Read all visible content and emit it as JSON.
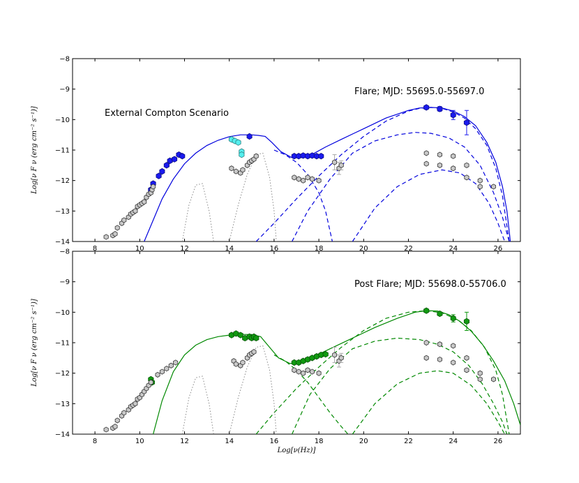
{
  "chart_data": [
    {
      "type": "scatter",
      "title": "Flare; MJD: 55695.0-55697.0",
      "annotation": "External Compton Scenario",
      "xlabel": "",
      "ylabel": "Log[ν F ν (erg cm⁻² s⁻¹)]",
      "xlim": [
        7,
        27
      ],
      "ylim": [
        -14,
        -8
      ],
      "xticks": [
        8,
        10,
        12,
        14,
        16,
        18,
        20,
        22,
        24,
        26
      ],
      "yticks": [
        -14,
        -13,
        -12,
        -11,
        -10,
        -9,
        -8
      ],
      "xtick_labels": [
        "8",
        "10",
        "12",
        "14",
        "16",
        "18",
        "20",
        "22",
        "24",
        "26"
      ],
      "ytick_labels": [
        "−14",
        "−13",
        "−12",
        "−11",
        "−10",
        "−9",
        "−8"
      ],
      "color": "#0000dd",
      "grid": false,
      "series": [
        {
          "style": "points-filled",
          "color": "#1a1aee",
          "x": [
            10.5,
            10.6,
            10.85,
            11.0,
            11.2,
            11.35,
            11.55,
            11.75,
            11.9
          ],
          "y": [
            -12.3,
            -12.1,
            -11.85,
            -11.7,
            -11.5,
            -11.35,
            -11.3,
            -11.15,
            -11.2
          ]
        },
        {
          "style": "points-filled",
          "color": "#1a1aee",
          "x": [
            14.9,
            16.9,
            17.1,
            17.3,
            17.5,
            17.7,
            17.9,
            18.1,
            22.8,
            23.4,
            24.0,
            24.6
          ],
          "y": [
            -10.55,
            -11.2,
            -11.2,
            -11.18,
            -11.2,
            -11.18,
            -11.2,
            -11.2,
            -9.6,
            -9.65,
            -9.85,
            -10.1
          ],
          "yerr": [
            0,
            0,
            0,
            0,
            0,
            0,
            0,
            0,
            0,
            0.08,
            0.15,
            0.4
          ]
        },
        {
          "style": "points-cyan",
          "color": "#55eeee",
          "x": [
            14.1,
            14.25,
            14.4,
            14.55,
            14.55
          ],
          "y": [
            -10.65,
            -10.7,
            -10.75,
            -11.05,
            -11.15
          ]
        },
        {
          "style": "points-gray",
          "color": "#c8c8c8",
          "x": [
            8.5,
            8.8,
            8.9,
            9.0,
            9.2,
            9.3,
            9.5,
            9.6,
            9.7,
            9.8,
            9.9,
            10.0,
            10.1,
            10.2,
            10.3,
            10.4,
            10.5,
            10.55,
            10.6,
            14.1,
            14.3,
            14.5,
            14.6,
            14.8,
            14.9,
            15.0,
            15.1,
            15.2,
            16.9,
            17.1,
            17.3,
            17.5,
            17.7,
            18.0,
            18.7,
            18.9,
            19.0,
            22.8,
            22.8,
            23.4,
            23.4,
            24.0,
            24.0,
            24.6,
            24.6,
            25.2,
            25.2,
            25.8
          ],
          "y": [
            -13.85,
            -13.8,
            -13.75,
            -13.55,
            -13.4,
            -13.3,
            -13.2,
            -13.1,
            -13.05,
            -13.0,
            -12.85,
            -12.8,
            -12.75,
            -12.7,
            -12.55,
            -12.45,
            -12.4,
            -12.3,
            -12.2,
            -11.6,
            -11.7,
            -11.75,
            -11.65,
            -11.5,
            -11.4,
            -11.35,
            -11.3,
            -11.2,
            -11.9,
            -11.95,
            -12.0,
            -11.9,
            -11.95,
            -12.0,
            -11.4,
            -11.6,
            -11.5,
            -11.1,
            -11.45,
            -11.15,
            -11.5,
            -11.2,
            -11.6,
            -11.5,
            -11.9,
            -12.0,
            -12.2,
            -12.2
          ],
          "yerr": [
            0,
            0,
            0,
            0,
            0,
            0,
            0,
            0,
            0,
            0,
            0,
            0,
            0,
            0,
            0,
            0,
            0,
            0,
            0,
            0,
            0,
            0,
            0,
            0,
            0,
            0,
            0,
            0,
            0,
            0,
            0,
            0,
            0,
            0,
            0.25,
            0.2,
            0.15,
            0,
            0,
            0,
            0,
            0,
            0,
            0,
            0,
            0,
            0,
            0
          ]
        },
        {
          "style": "line-solid",
          "color": "#0000dd",
          "x": [
            10.2,
            10.6,
            11.0,
            11.5,
            12.0,
            12.5,
            13.0,
            13.5,
            14.0,
            14.5,
            15.0,
            15.3,
            15.6,
            15.9,
            16.3,
            16.8,
            17.3,
            17.8,
            18.3,
            19.0,
            20.0,
            21.0,
            22.0,
            22.5,
            23.0,
            23.5,
            24.0,
            24.5,
            25.0,
            25.5,
            25.9,
            26.2,
            26.4,
            26.55
          ],
          "y": [
            -14.0,
            -13.3,
            -12.6,
            -11.95,
            -11.45,
            -11.1,
            -10.85,
            -10.68,
            -10.56,
            -10.5,
            -10.5,
            -10.52,
            -10.55,
            -10.75,
            -11.05,
            -11.25,
            -11.25,
            -11.1,
            -10.9,
            -10.65,
            -10.3,
            -9.95,
            -9.7,
            -9.62,
            -9.6,
            -9.62,
            -9.72,
            -9.9,
            -10.2,
            -10.75,
            -11.4,
            -12.2,
            -13.0,
            -14.0
          ]
        },
        {
          "style": "line-dashed",
          "color": "#0000dd",
          "x": [
            15.2,
            16.0,
            17.0,
            18.0,
            19.0,
            20.0,
            21.0,
            22.0,
            22.5,
            23.0,
            23.5,
            24.0,
            24.5,
            25.0,
            25.5,
            25.9,
            26.2,
            26.5
          ],
          "y": [
            -14.0,
            -13.4,
            -12.6,
            -11.85,
            -11.15,
            -10.55,
            -10.05,
            -9.72,
            -9.63,
            -9.6,
            -9.63,
            -9.75,
            -9.95,
            -10.3,
            -10.85,
            -11.6,
            -12.5,
            -14.0
          ]
        },
        {
          "style": "line-dashed",
          "color": "#0000dd",
          "x": [
            16.8,
            17.5,
            18.5,
            19.5,
            20.5,
            21.5,
            22.3,
            23.0,
            23.8,
            24.5,
            25.2,
            25.8,
            26.2,
            26.5
          ],
          "y": [
            -14.0,
            -13.0,
            -11.95,
            -11.1,
            -10.7,
            -10.5,
            -10.42,
            -10.45,
            -10.6,
            -10.9,
            -11.5,
            -12.4,
            -13.2,
            -14.0
          ]
        },
        {
          "style": "line-dashed",
          "color": "#0000dd",
          "x": [
            19.5,
            20.5,
            21.5,
            22.5,
            23.5,
            24.3,
            25.0,
            25.6,
            26.0,
            26.3
          ],
          "y": [
            -14.0,
            -12.9,
            -12.2,
            -11.8,
            -11.65,
            -11.75,
            -12.1,
            -12.75,
            -13.4,
            -14.0
          ]
        },
        {
          "style": "line-dashed",
          "color": "#0000dd",
          "x": [
            16.0,
            16.5,
            17.0,
            17.5,
            18.0,
            18.3,
            18.6
          ],
          "y": [
            -11.0,
            -11.15,
            -11.4,
            -11.8,
            -12.4,
            -13.0,
            -14.0
          ]
        },
        {
          "style": "line-dotted",
          "color": "#888888",
          "x": [
            11.9,
            12.2,
            12.5,
            12.8,
            13.1,
            13.3
          ],
          "y": [
            -14.0,
            -12.8,
            -12.15,
            -12.1,
            -13.0,
            -14.0
          ]
        },
        {
          "style": "line-dotted",
          "color": "#888888",
          "x": [
            14.0,
            14.4,
            14.8,
            15.2,
            15.5,
            15.8,
            16.0,
            16.1
          ],
          "y": [
            -14.0,
            -12.8,
            -11.8,
            -11.15,
            -11.1,
            -11.9,
            -13.0,
            -14.0
          ]
        }
      ]
    },
    {
      "type": "scatter",
      "title": "Post Flare; MJD: 55698.0-55706.0",
      "xlabel": "Log[ν(Hz)]",
      "ylabel": "Log[ν F ν (erg cm⁻² s⁻¹)]",
      "xlim": [
        7,
        27
      ],
      "ylim": [
        -14,
        -8
      ],
      "xticks": [
        8,
        10,
        12,
        14,
        16,
        18,
        20,
        22,
        24,
        26
      ],
      "yticks": [
        -14,
        -13,
        -12,
        -11,
        -10,
        -9,
        -8
      ],
      "xtick_labels": [
        "8",
        "10",
        "12",
        "14",
        "16",
        "18",
        "20",
        "22",
        "24",
        "26"
      ],
      "ytick_labels": [
        "−14",
        "−13",
        "−12",
        "−11",
        "−10",
        "−9",
        "−8"
      ],
      "color": "#008800",
      "grid": false,
      "series": [
        {
          "style": "points-filled",
          "color": "#119911",
          "x": [
            10.5,
            10.55,
            14.1,
            14.3,
            14.5,
            14.7,
            14.9,
            15.0,
            15.1,
            15.2,
            16.9,
            17.1,
            17.3,
            17.5,
            17.7,
            17.9,
            18.1,
            18.3,
            22.8,
            23.4,
            24.0,
            24.6
          ],
          "y": [
            -12.2,
            -12.3,
            -10.75,
            -10.7,
            -10.75,
            -10.85,
            -10.8,
            -10.85,
            -10.8,
            -10.85,
            -11.65,
            -11.65,
            -11.6,
            -11.55,
            -11.5,
            -11.45,
            -11.4,
            -11.38,
            -9.95,
            -10.05,
            -10.2,
            -10.3
          ],
          "yerr": [
            0,
            0,
            0,
            0,
            0,
            0,
            0,
            0,
            0,
            0,
            0,
            0,
            0,
            0,
            0,
            0,
            0,
            0,
            0,
            0.06,
            0.12,
            0.3
          ]
        },
        {
          "style": "points-gray",
          "color": "#c8c8c8",
          "x": [
            8.5,
            8.8,
            8.9,
            9.0,
            9.2,
            9.3,
            9.5,
            9.6,
            9.7,
            9.8,
            9.9,
            10.0,
            10.1,
            10.2,
            10.3,
            10.4,
            10.5,
            10.8,
            11.0,
            11.2,
            11.4,
            11.6,
            14.2,
            14.3,
            14.5,
            14.6,
            14.8,
            14.9,
            15.0,
            15.1,
            16.9,
            17.1,
            17.3,
            17.5,
            17.7,
            18.0,
            18.7,
            18.9,
            19.0,
            22.8,
            22.8,
            23.4,
            23.4,
            24.0,
            24.0,
            24.6,
            24.6,
            25.2,
            25.2,
            25.8
          ],
          "y": [
            -13.85,
            -13.8,
            -13.75,
            -13.55,
            -13.4,
            -13.3,
            -13.2,
            -13.1,
            -13.05,
            -13.0,
            -12.85,
            -12.8,
            -12.7,
            -12.6,
            -12.5,
            -12.4,
            -12.3,
            -12.05,
            -11.95,
            -11.85,
            -11.75,
            -11.65,
            -11.6,
            -11.7,
            -11.75,
            -11.65,
            -11.5,
            -11.4,
            -11.35,
            -11.3,
            -11.9,
            -11.95,
            -12.0,
            -11.9,
            -11.95,
            -12.0,
            -11.4,
            -11.6,
            -11.5,
            -11.0,
            -11.5,
            -11.05,
            -11.55,
            -11.1,
            -11.65,
            -11.5,
            -11.9,
            -12.0,
            -12.2,
            -12.2
          ],
          "yerr": [
            0,
            0,
            0,
            0,
            0,
            0,
            0,
            0,
            0,
            0,
            0,
            0,
            0,
            0,
            0,
            0,
            0,
            0,
            0,
            0,
            0,
            0,
            0,
            0,
            0,
            0,
            0,
            0,
            0,
            0,
            0,
            0,
            0,
            0,
            0,
            0,
            0.25,
            0.2,
            0.15,
            0,
            0,
            0,
            0,
            0,
            0,
            0,
            0,
            0,
            0,
            0
          ]
        },
        {
          "style": "line-solid",
          "color": "#008800",
          "x": [
            10.6,
            11.0,
            11.5,
            12.0,
            12.5,
            13.0,
            13.5,
            14.0,
            14.5,
            15.0,
            15.4,
            15.8,
            16.2,
            16.7,
            17.2,
            17.8,
            18.5,
            19.5,
            20.5,
            21.5,
            22.3,
            22.8,
            23.3,
            23.8,
            24.3,
            24.8,
            25.3,
            25.8,
            26.3,
            26.7,
            27.0
          ],
          "y": [
            -14.0,
            -12.9,
            -11.95,
            -11.4,
            -11.08,
            -10.9,
            -10.8,
            -10.75,
            -10.73,
            -10.73,
            -10.8,
            -11.15,
            -11.5,
            -11.68,
            -11.65,
            -11.45,
            -11.2,
            -10.85,
            -10.5,
            -10.2,
            -10.0,
            -9.95,
            -9.96,
            -10.08,
            -10.3,
            -10.62,
            -11.05,
            -11.6,
            -12.25,
            -13.0,
            -13.7
          ]
        },
        {
          "style": "line-dashed",
          "color": "#008800",
          "x": [
            15.2,
            16.0,
            17.0,
            18.0,
            19.0,
            20.0,
            21.0,
            22.0,
            22.8,
            23.5,
            24.2,
            24.8,
            25.4,
            25.9,
            26.2,
            26.5
          ],
          "y": [
            -14.0,
            -13.3,
            -12.5,
            -11.8,
            -11.15,
            -10.6,
            -10.2,
            -10.0,
            -9.95,
            -10.02,
            -10.25,
            -10.6,
            -11.15,
            -11.9,
            -12.7,
            -14.0
          ]
        },
        {
          "style": "line-dashed",
          "color": "#008800",
          "x": [
            16.8,
            17.6,
            18.5,
            19.5,
            20.5,
            21.5,
            22.5,
            23.3,
            24.0,
            24.7,
            25.3,
            25.8,
            26.2,
            26.4
          ],
          "y": [
            -14.0,
            -12.7,
            -11.85,
            -11.2,
            -10.95,
            -10.85,
            -10.9,
            -11.05,
            -11.3,
            -11.75,
            -12.35,
            -13.0,
            -13.6,
            -14.0
          ]
        },
        {
          "style": "line-dashed",
          "color": "#008800",
          "x": [
            19.5,
            20.5,
            21.5,
            22.5,
            23.3,
            24.0,
            24.8,
            25.5,
            26.0,
            26.3
          ],
          "y": [
            -14.0,
            -13.0,
            -12.35,
            -12.0,
            -11.92,
            -12.0,
            -12.4,
            -13.0,
            -13.6,
            -14.0
          ]
        },
        {
          "style": "line-dashed",
          "color": "#008800",
          "x": [
            16.0,
            16.5,
            17.0,
            17.5,
            18.0,
            18.5,
            19.0,
            19.3
          ],
          "y": [
            -11.4,
            -11.6,
            -11.9,
            -12.3,
            -12.8,
            -13.3,
            -13.75,
            -14.0
          ]
        },
        {
          "style": "line-dotted",
          "color": "#888888",
          "x": [
            11.9,
            12.2,
            12.5,
            12.8,
            13.1,
            13.3
          ],
          "y": [
            -14.0,
            -12.8,
            -12.15,
            -12.1,
            -13.0,
            -14.0
          ]
        },
        {
          "style": "line-dotted",
          "color": "#888888",
          "x": [
            14.0,
            14.4,
            14.8,
            15.2,
            15.5,
            15.8,
            16.0,
            16.1
          ],
          "y": [
            -14.0,
            -12.8,
            -11.8,
            -11.15,
            -11.1,
            -11.9,
            -13.0,
            -14.0
          ]
        }
      ]
    }
  ]
}
